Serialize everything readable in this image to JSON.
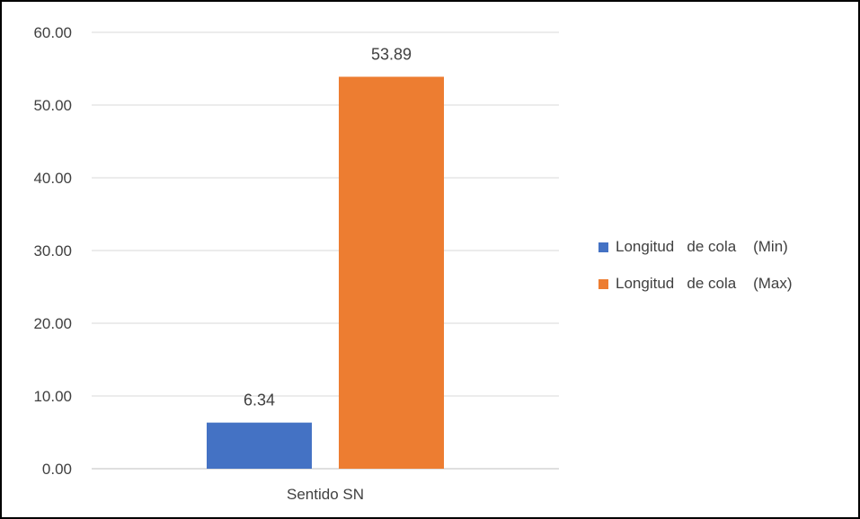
{
  "chart_data": {
    "type": "bar",
    "categories": [
      "Sentido SN"
    ],
    "series": [
      {
        "name": "Longitud   de cola    (Min)",
        "values": [
          6.34
        ],
        "color": "#4472C4"
      },
      {
        "name": "Longitud   de cola    (Max)",
        "values": [
          53.89
        ],
        "color": "#ED7D31"
      }
    ],
    "data_labels": [
      "6.34",
      "53.89"
    ],
    "yticks": [
      "0.00",
      "10.00",
      "20.00",
      "30.00",
      "40.00",
      "50.00",
      "60.00"
    ],
    "ylim": [
      0,
      60
    ],
    "grid": true,
    "legend_position": "right"
  }
}
